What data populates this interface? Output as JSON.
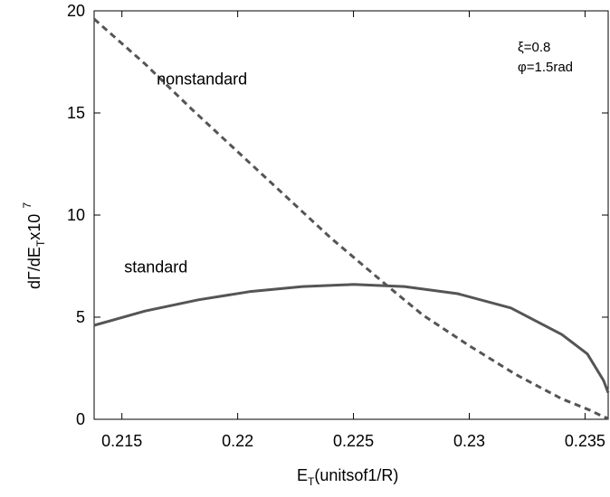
{
  "chart_data": {
    "type": "line",
    "xlabel": {
      "main": "E",
      "sub": "T",
      "rest": "(unitsof1/R)"
    },
    "ylabel": {
      "pre": "dΓ/dE",
      "sub": "T",
      "mid": "x10",
      "sup": "7"
    },
    "xlim": [
      0.2138,
      0.236
    ],
    "ylim": [
      0,
      20
    ],
    "x_ticks": [
      {
        "value": 0.215,
        "label": "0.215"
      },
      {
        "value": 0.22,
        "label": "0.22"
      },
      {
        "value": 0.225,
        "label": "0.225"
      },
      {
        "value": 0.23,
        "label": "0.23"
      },
      {
        "value": 0.235,
        "label": "0.235"
      }
    ],
    "y_ticks": [
      {
        "value": 0,
        "label": "0"
      },
      {
        "value": 5,
        "label": "5"
      },
      {
        "value": 10,
        "label": "10"
      },
      {
        "value": 15,
        "label": "15"
      },
      {
        "value": 20,
        "label": "20"
      }
    ],
    "grid": false,
    "params": [
      "ξ=0.8",
      "φ=1.5rad"
    ],
    "series": [
      {
        "name": "nonstandard",
        "style": "dashed",
        "color": "#555555",
        "x": [
          0.2138,
          0.216,
          0.218,
          0.22,
          0.222,
          0.224,
          0.2265,
          0.228,
          0.23,
          0.232,
          0.234,
          0.2352,
          0.2358,
          0.236
        ],
        "y": [
          19.6,
          17.4,
          15.2,
          13.1,
          11.0,
          8.9,
          6.5,
          5.1,
          3.6,
          2.2,
          1.0,
          0.45,
          0.12,
          0.05
        ]
      },
      {
        "name": "standard",
        "style": "solid",
        "color": "#555555",
        "x": [
          0.2138,
          0.216,
          0.2183,
          0.2205,
          0.2228,
          0.225,
          0.2272,
          0.2295,
          0.2318,
          0.234,
          0.2351,
          0.2358,
          0.236
        ],
        "y": [
          4.6,
          5.3,
          5.85,
          6.25,
          6.5,
          6.6,
          6.5,
          6.15,
          5.45,
          4.15,
          3.2,
          1.9,
          1.3
        ]
      }
    ],
    "annotations": [
      {
        "text": "nonstandard",
        "x": 0.2165,
        "y": 16.4
      },
      {
        "text": "standard",
        "x": 0.2151,
        "y": 7.2
      }
    ]
  }
}
